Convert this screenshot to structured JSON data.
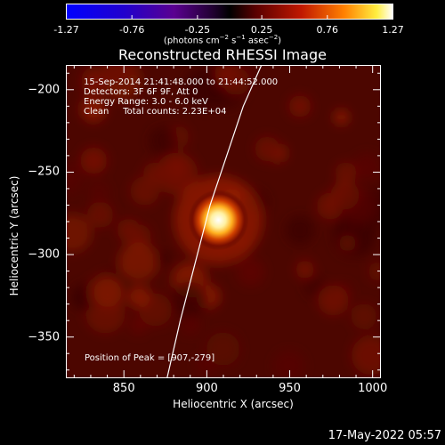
{
  "chart_data": {
    "type": "heatmap",
    "title": "Reconstructed RHESSI Image",
    "xlabel": "Heliocentric X (arcsec)",
    "ylabel": "Heliocentric Y (arcsec)",
    "xlim": [
      815,
      1005
    ],
    "ylim": [
      -375,
      -185
    ],
    "xticks": [
      850,
      900,
      950,
      1000
    ],
    "yticks": [
      -200,
      -250,
      -300,
      -350
    ],
    "colorbar": {
      "ticks": [
        "-1.27",
        "-0.76",
        "-0.25",
        "0.25",
        "0.76",
        "1.27"
      ],
      "range": [
        -1.27,
        1.27
      ],
      "unit_label": "(photons cm⁻² s⁻¹ asec⁻²)"
    },
    "peak": {
      "x": 907,
      "y": -279,
      "value": 1.27
    },
    "annotations": {
      "time": "15-Sep-2014 21:41:48.000 to 21:44:52.000",
      "detectors": "Detectors: 3F 6F 9F, Att 0",
      "energy": "Energy Range: 3.0 - 6.0 keV",
      "clean": "Clean     Total counts: 2.23E+04",
      "peak_label": "Position of Peak = [907,-279]"
    },
    "limb": [
      [
        876,
        -375
      ],
      [
        884,
        -340
      ],
      [
        893,
        -305
      ],
      [
        902,
        -270
      ],
      [
        912,
        -240
      ],
      [
        922,
        -210
      ],
      [
        933,
        -185
      ]
    ],
    "grid": false
  },
  "footer": {
    "date": "17-May-2022 05:57"
  }
}
